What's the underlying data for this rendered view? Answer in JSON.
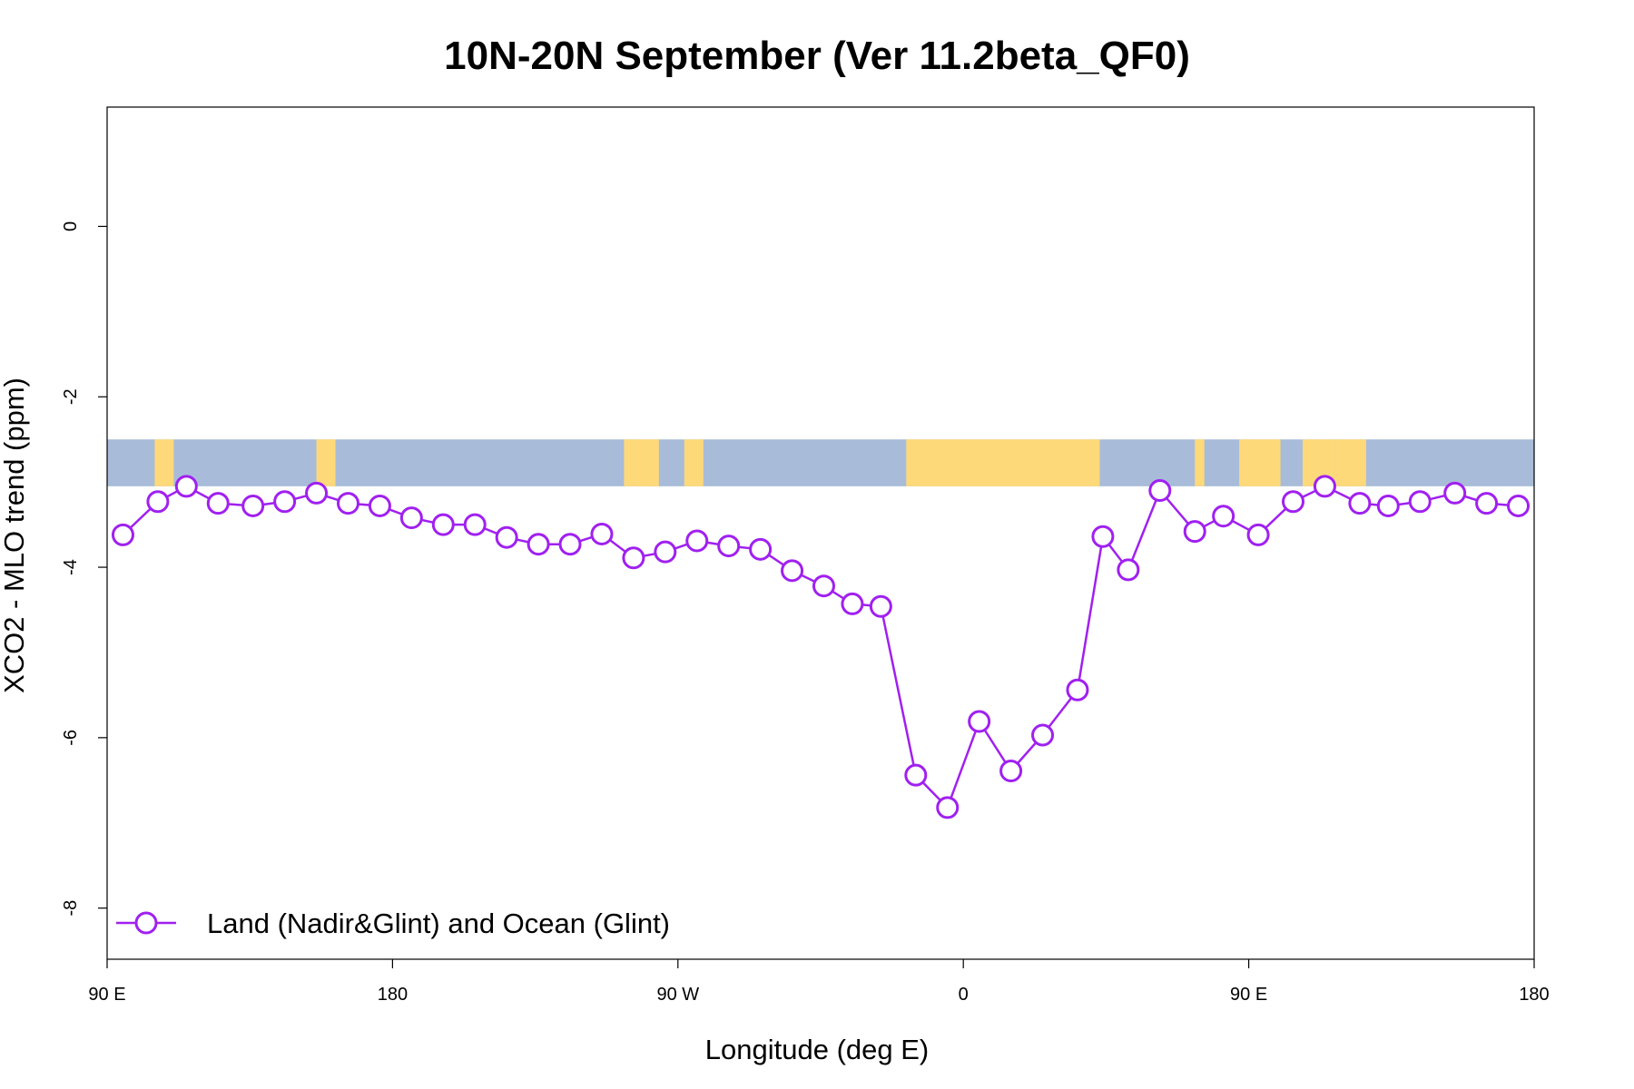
{
  "chart_data": {
    "type": "line",
    "title": "10N-20N September (Ver 11.2beta_QF0)",
    "xlabel": "Longitude (deg E)",
    "ylabel": "XCO2 - MLO trend (ppm)",
    "xlim": [
      90,
      540
    ],
    "ylim": [
      -8.6,
      1.4
    ],
    "x_ticks": [
      {
        "value": 90,
        "label": "90 E"
      },
      {
        "value": 180,
        "label": "180"
      },
      {
        "value": 270,
        "label": "90 W"
      },
      {
        "value": 360,
        "label": "0"
      },
      {
        "value": 450,
        "label": "90 E"
      },
      {
        "value": 540,
        "label": "180"
      }
    ],
    "y_ticks": [
      {
        "value": 0,
        "label": "0"
      },
      {
        "value": -2,
        "label": "-2"
      },
      {
        "value": -4,
        "label": "-4"
      },
      {
        "value": -6,
        "label": "-6"
      },
      {
        "value": -8,
        "label": "-8"
      }
    ],
    "grid": false,
    "legend_position": "bottom-left",
    "colors": {
      "series": "#A020F0",
      "ocean": "#A8BCD9",
      "land": "#FDD97A"
    },
    "map_strip": {
      "y_range": [
        -3.05,
        -2.5
      ],
      "land_longitudes": [
        [
          105,
          111
        ],
        [
          156,
          162
        ],
        [
          253,
          264
        ],
        [
          272,
          278
        ],
        [
          342,
          403
        ],
        [
          433,
          436
        ],
        [
          447,
          460
        ],
        [
          467,
          477
        ],
        [
          477,
          487
        ]
      ]
    },
    "series": [
      {
        "name": "Land (Nadir&Glint) and Ocean (Glint)",
        "x": [
          95,
          106,
          115,
          125,
          136,
          146,
          156,
          166,
          176,
          186,
          196,
          206,
          216,
          226,
          236,
          246,
          256,
          266,
          276,
          286,
          296,
          306,
          316,
          325,
          334,
          345,
          355,
          365,
          375,
          385,
          396,
          404,
          412,
          422,
          433,
          442,
          453,
          464,
          474,
          485,
          494,
          504,
          515,
          525,
          535
        ],
        "y": [
          -3.62,
          -3.23,
          -3.05,
          -3.25,
          -3.28,
          -3.23,
          -3.13,
          -3.25,
          -3.28,
          -3.42,
          -3.5,
          -3.5,
          -3.65,
          -3.73,
          -3.73,
          -3.61,
          -3.89,
          -3.82,
          -3.69,
          -3.75,
          -3.79,
          -4.04,
          -4.22,
          -4.43,
          -4.46,
          -6.44,
          -6.82,
          -5.81,
          -6.39,
          -5.97,
          -5.44,
          -3.64,
          -4.03,
          -3.1,
          -3.58,
          -3.4,
          -3.62,
          -3.23,
          -3.05,
          -3.25,
          -3.28,
          -3.23,
          -3.13,
          -3.25,
          -3.28
        ]
      }
    ]
  }
}
